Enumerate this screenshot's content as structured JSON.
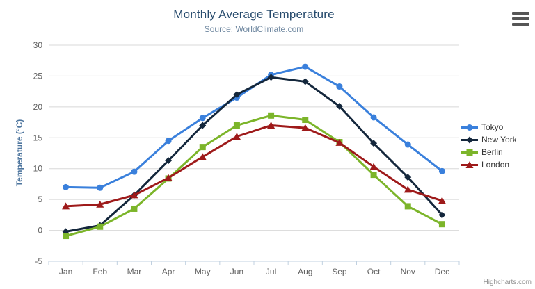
{
  "header": {
    "title": "Monthly Average Temperature",
    "subtitle": "Source: WorldClimate.com"
  },
  "credits": "Highcharts.com",
  "colors": {
    "title": "#274b6d",
    "subtitle": "#6d869f",
    "axis_title": "#4d759e",
    "axis_labels": "#606060",
    "gridline": "#d8d8d8",
    "axis_line": "#c0d0e0",
    "legend_text": "#333333",
    "burger": "#565656"
  },
  "chart_data": {
    "type": "line",
    "title": "Monthly Average Temperature",
    "subtitle": "Source: WorldClimate.com",
    "xlabel": "",
    "ylabel": "Temperature (°C)",
    "categories": [
      "Jan",
      "Feb",
      "Mar",
      "Apr",
      "May",
      "Jun",
      "Jul",
      "Aug",
      "Sep",
      "Oct",
      "Nov",
      "Dec"
    ],
    "series": [
      {
        "name": "Tokyo",
        "color": "#3a80dc",
        "marker": "circle",
        "values": [
          7.0,
          6.9,
          9.5,
          14.5,
          18.2,
          21.5,
          25.2,
          26.5,
          23.3,
          18.3,
          13.9,
          9.6
        ]
      },
      {
        "name": "New York",
        "color": "#14273c",
        "marker": "diamond",
        "values": [
          -0.2,
          0.8,
          5.7,
          11.3,
          17.0,
          22.0,
          24.8,
          24.1,
          20.1,
          14.1,
          8.6,
          2.5
        ]
      },
      {
        "name": "Berlin",
        "color": "#7cb52a",
        "marker": "square",
        "values": [
          -0.9,
          0.6,
          3.5,
          8.4,
          13.5,
          17.0,
          18.6,
          17.9,
          14.3,
          9.0,
          3.9,
          1.0
        ]
      },
      {
        "name": "London",
        "color": "#9e1a1a",
        "marker": "triangle",
        "values": [
          3.9,
          4.2,
          5.7,
          8.5,
          11.9,
          15.2,
          17.0,
          16.6,
          14.2,
          10.3,
          6.6,
          4.8
        ]
      }
    ],
    "ylim": [
      -5,
      30
    ],
    "ytick_step": 5,
    "grid": true,
    "legend_position": "right"
  }
}
